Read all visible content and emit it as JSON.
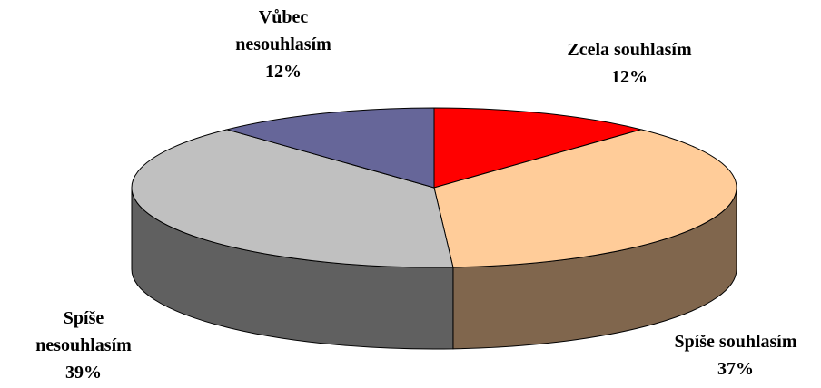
{
  "chart_data": {
    "type": "pie3d",
    "categories": [
      "Zcela souhlasím",
      "Spíše souhlasím",
      "Spíše nesouhlasím",
      "Vůbec nesouhlasím"
    ],
    "values": [
      12,
      37,
      39,
      12
    ],
    "value_labels": [
      "12%",
      "37%",
      "39%",
      "12%"
    ],
    "colors": [
      "#ff0000",
      "#ffcc99",
      "#c0c0c0",
      "#666699"
    ]
  }
}
